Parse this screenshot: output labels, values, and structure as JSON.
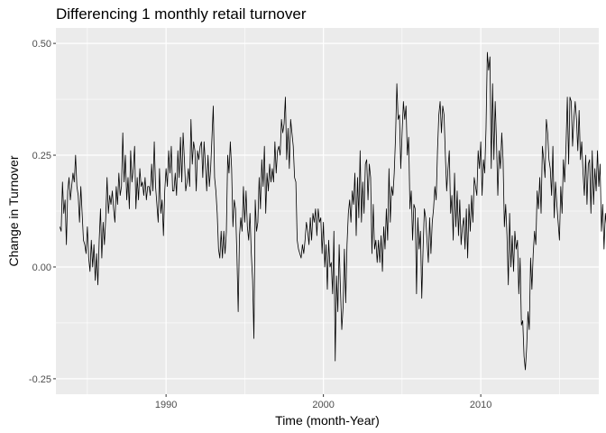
{
  "chart_data": {
    "type": "line",
    "title": "Differencing 1 monthly retail turnover",
    "xlabel": "Time (month-Year)",
    "ylabel": "Change in Turnover",
    "xlim": [
      "1983-01",
      "2017-07"
    ],
    "ylim": [
      -0.25,
      0.5
    ],
    "x_ticks": [
      "1990",
      "2000",
      "2010"
    ],
    "y_ticks": [
      "-0.25",
      "0.00",
      "0.25",
      "0.50"
    ],
    "grid": true,
    "legend": "none",
    "series": [
      {
        "color": "#000000",
        "x_start": "1983-04",
        "frequency": "monthly",
        "values": [
          0.09,
          0.08,
          0.19,
          0.12,
          0.15,
          0.05,
          0.17,
          0.2,
          0.15,
          0.18,
          0.21,
          0.19,
          0.25,
          0.18,
          0.16,
          0.1,
          0.18,
          0.12,
          0.06,
          0.05,
          0.03,
          0.09,
          0.02,
          -0.01,
          0.06,
          0.0,
          0.05,
          -0.03,
          0.03,
          -0.04,
          0.06,
          0.13,
          0.02,
          0.1,
          0.05,
          0.11,
          0.2,
          0.12,
          0.16,
          0.14,
          0.17,
          0.13,
          0.1,
          0.18,
          0.14,
          0.21,
          0.16,
          0.18,
          0.3,
          0.19,
          0.25,
          0.15,
          0.2,
          0.13,
          0.26,
          0.19,
          0.22,
          0.27,
          0.13,
          0.2,
          0.15,
          0.22,
          0.18,
          0.19,
          0.16,
          0.2,
          0.15,
          0.18,
          0.18,
          0.16,
          0.23,
          0.17,
          0.28,
          0.18,
          0.14,
          0.1,
          0.22,
          0.12,
          0.15,
          0.07,
          0.17,
          0.22,
          0.18,
          0.26,
          0.21,
          0.27,
          0.17,
          0.17,
          0.21,
          0.16,
          0.26,
          0.2,
          0.29,
          0.19,
          0.3,
          0.24,
          0.17,
          0.19,
          0.22,
          0.18,
          0.33,
          0.23,
          0.28,
          0.26,
          0.17,
          0.26,
          0.24,
          0.27,
          0.28,
          0.2,
          0.28,
          0.23,
          0.17,
          0.25,
          0.18,
          0.22,
          0.29,
          0.36,
          0.2,
          0.17,
          0.12,
          0.04,
          0.02,
          0.08,
          0.02,
          0.08,
          0.03,
          0.08,
          0.25,
          0.21,
          0.28,
          0.22,
          0.09,
          0.15,
          0.13,
          0.03,
          -0.1,
          0.07,
          0.11,
          0.08,
          0.18,
          0.1,
          0.17,
          0.09,
          0.06,
          0.12,
          0.03,
          -0.03,
          -0.16,
          0.15,
          0.08,
          0.1,
          0.2,
          0.13,
          0.24,
          0.18,
          0.27,
          0.12,
          0.21,
          0.17,
          0.23,
          0.19,
          0.22,
          0.19,
          0.28,
          0.21,
          0.26,
          0.27,
          0.25,
          0.33,
          0.3,
          0.32,
          0.38,
          0.24,
          0.31,
          0.22,
          0.33,
          0.3,
          0.27,
          0.2,
          0.19,
          0.06,
          0.04,
          0.03,
          0.02,
          0.05,
          0.03,
          0.06,
          0.1,
          0.08,
          0.05,
          0.11,
          0.06,
          0.12,
          0.1,
          0.13,
          0.07,
          0.13,
          0.1,
          0.11,
          0.03,
          0.1,
          0.0,
          0.05,
          -0.05,
          0.06,
          0.0,
          0.01,
          -0.06,
          0.08,
          -0.21,
          -0.02,
          -0.1,
          0.05,
          -0.05,
          -0.14,
          -0.09,
          0.04,
          -0.08,
          0.05,
          0.12,
          0.15,
          0.1,
          0.17,
          0.14,
          0.21,
          0.07,
          0.2,
          0.11,
          0.26,
          0.1,
          0.19,
          0.12,
          0.23,
          0.24,
          0.15,
          0.23,
          0.2,
          0.03,
          0.14,
          0.04,
          0.06,
          0.01,
          0.06,
          0.01,
          0.07,
          -0.01,
          0.09,
          0.04,
          0.13,
          0.06,
          0.22,
          0.1,
          0.18,
          0.16,
          0.21,
          0.29,
          0.41,
          0.33,
          0.34,
          0.22,
          0.3,
          0.37,
          0.33,
          0.36,
          0.25,
          0.29,
          0.13,
          0.17,
          0.06,
          0.14,
          0.13,
          -0.06,
          0.11,
          0.04,
          0.08,
          -0.07,
          0.04,
          0.13,
          0.11,
          0.06,
          0.01,
          0.11,
          0.03,
          0.1,
          0.13,
          0.18,
          0.15,
          0.26,
          0.34,
          0.37,
          0.3,
          0.36,
          0.34,
          0.25,
          0.17,
          0.22,
          0.26,
          0.12,
          0.16,
          0.06,
          0.21,
          0.09,
          0.17,
          0.07,
          0.15,
          0.05,
          0.09,
          0.11,
          0.04,
          0.13,
          0.02,
          0.14,
          0.08,
          0.16,
          0.1,
          0.2,
          0.18,
          0.16,
          0.26,
          0.22,
          0.28,
          0.16,
          0.24,
          0.21,
          0.31,
          0.48,
          0.44,
          0.47,
          0.22,
          0.41,
          0.24,
          0.37,
          0.28,
          0.16,
          0.26,
          0.22,
          0.3,
          0.24,
          0.09,
          0.14,
          0.07,
          -0.04,
          0.12,
          0.0,
          0.07,
          -0.01,
          0.08,
          0.04,
          0.06,
          -0.06,
          0.02,
          -0.13,
          -0.12,
          -0.2,
          -0.23,
          -0.18,
          -0.1,
          -0.14,
          0.02,
          -0.05,
          0.03,
          0.08,
          0.05,
          0.17,
          0.13,
          0.2,
          0.12,
          0.27,
          0.24,
          0.2,
          0.33,
          0.3,
          0.24,
          0.22,
          0.16,
          0.27,
          0.11,
          0.19,
          0.14,
          0.1,
          0.06,
          0.18,
          0.12,
          0.24,
          0.19,
          0.27,
          0.38,
          0.23,
          0.38,
          0.37,
          0.27,
          0.33,
          0.37,
          0.33,
          0.26,
          0.35,
          0.24,
          0.28,
          0.21,
          0.16,
          0.25,
          0.14,
          0.23,
          0.24,
          0.12,
          0.26,
          0.14,
          0.22,
          0.17,
          0.26,
          0.18,
          0.23,
          0.08,
          0.14,
          0.04,
          0.12,
          0.09,
          0.05,
          0.13,
          0.06,
          0.14,
          0.04,
          0.12,
          0.09,
          0.18,
          0.1,
          0.15,
          0.08,
          0.14,
          0.06,
          0.11,
          0.07,
          0.1,
          0.17,
          0.09,
          0.16,
          0.12,
          0.22,
          0.11,
          0.21,
          0.17,
          0.23,
          0.16,
          0.26,
          0.19,
          0.23,
          0.12,
          0.21,
          0.15,
          0.18,
          0.08,
          0.15,
          0.05,
          0.1,
          0.06,
          0.01,
          0.05,
          0.02,
          0.09,
          0.04,
          0.01,
          0.03,
          -0.04,
          0.04,
          0.02,
          0.0,
          0.09,
          0.06,
          0.02,
          0.09,
          0.01,
          0.07,
          0.03,
          0.01,
          0.06,
          0.02,
          -0.03,
          0.02,
          -0.12,
          0.01,
          -0.05,
          0.06,
          0.0,
          0.08,
          0.03,
          0.1,
          0.03,
          0.08,
          0.13,
          0.05,
          0.11,
          0.07,
          0.15,
          0.06,
          0.2,
          0.12,
          0.24,
          0.13,
          0.19,
          0.11,
          0.15,
          0.02,
          -0.03,
          0.1,
          0.09,
          0.14
        ]
      }
    ]
  }
}
